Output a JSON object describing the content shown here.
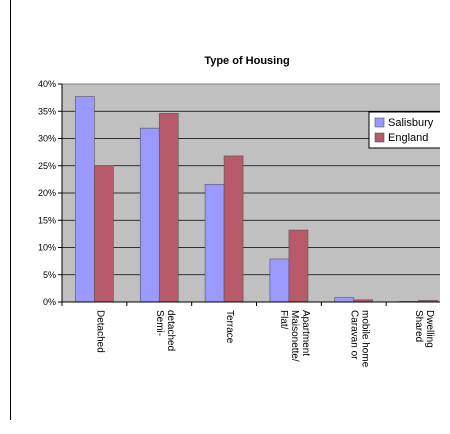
{
  "chart_data": {
    "type": "bar",
    "title": "Type of Housing",
    "categories": [
      [
        "Detached"
      ],
      [
        "Semi-",
        "detached"
      ],
      [
        "Terrace"
      ],
      [
        "Flat/",
        "Maisonette/",
        "Apartment"
      ],
      [
        "Caravan or",
        "mobile home"
      ],
      [
        "Shared",
        "Dwelling"
      ]
    ],
    "series": [
      {
        "name": "Salisbury",
        "values": [
          37.7,
          31.9,
          21.6,
          7.9,
          0.8,
          0.1
        ]
      },
      {
        "name": "England",
        "values": [
          25.0,
          34.6,
          26.8,
          13.2,
          0.4,
          0.3
        ]
      }
    ],
    "ylim": [
      0,
      40
    ],
    "yticks": [
      "0%",
      "5%",
      "10%",
      "15%",
      "20%",
      "25%",
      "30%",
      "35%",
      "40%"
    ],
    "grid": true,
    "legend_position": "right",
    "colors": {
      "plot_background": "#c0c0c0",
      "salisbury": "#9999ff",
      "england": "#b85a6a",
      "grid": "#000000"
    }
  }
}
